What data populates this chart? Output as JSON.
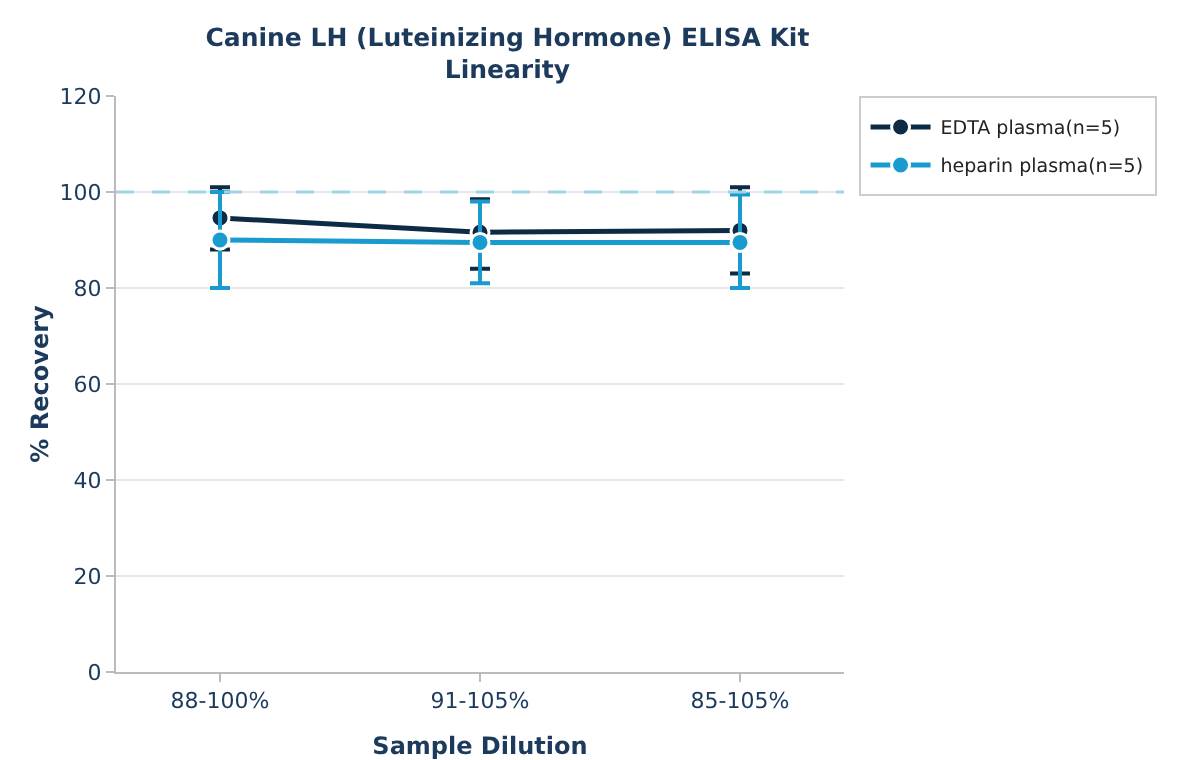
{
  "chart_data": {
    "type": "line",
    "title": "Canine LH (Luteinizing Hormone) ELISA Kit",
    "subtitle": "Linearity",
    "xlabel": "Sample Dilution",
    "ylabel": "% Recovery",
    "categories": [
      "88-100%",
      "91-105%",
      "85-105%"
    ],
    "series": [
      {
        "name": "EDTA plasma(n=5)",
        "color": "#0d2b45",
        "values": [
          94.6,
          91.6,
          92
        ],
        "errors": [
          [
            88,
            101
          ],
          [
            84,
            98.5
          ],
          [
            83,
            101
          ]
        ]
      },
      {
        "name": "heparin plasma(n=5)",
        "color": "#1a9bcf",
        "values": [
          90,
          89.5,
          89.5
        ],
        "errors": [
          [
            80,
            100
          ],
          [
            81,
            98
          ],
          [
            80,
            99.5
          ]
        ]
      }
    ],
    "ylim": [
      0,
      120
    ],
    "yticks": [
      0,
      20,
      40,
      60,
      80,
      100,
      120
    ],
    "grid": "y",
    "legend": "top right",
    "marker": "circle",
    "line_style": "solid",
    "ref_lines": [
      {
        "axis": "y",
        "value": 100,
        "color": "#9fd3e6",
        "line_style": "dashed"
      }
    ]
  }
}
